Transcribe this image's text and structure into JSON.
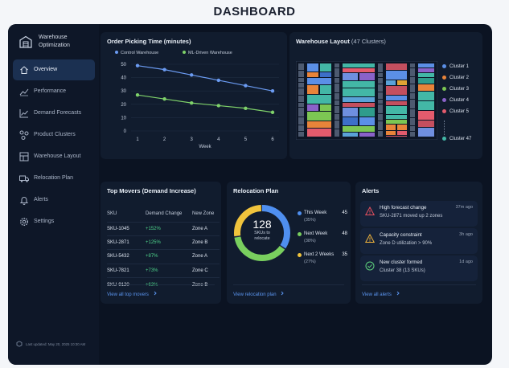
{
  "page": {
    "title": "DASHBOARD"
  },
  "brand": {
    "line1": "Warehouse",
    "line2": "Optimization"
  },
  "sidebar": {
    "items": [
      {
        "label": "Overview",
        "icon": "home-icon",
        "active": true
      },
      {
        "label": "Performance",
        "icon": "trend-icon"
      },
      {
        "label": "Demand Forecasts",
        "icon": "chart-icon"
      },
      {
        "label": "Product Clusters",
        "icon": "cluster-icon"
      },
      {
        "label": "Warehouse Layout",
        "icon": "layout-icon"
      },
      {
        "label": "Relocation Plan",
        "icon": "truck-icon"
      },
      {
        "label": "Alerts",
        "icon": "bell-icon"
      },
      {
        "label": "Settings",
        "icon": "gear-icon"
      }
    ],
    "updated": "Last updated: May 20, 2025 10:30 AM"
  },
  "picking": {
    "title": "Order Picking Time (minutes)",
    "chart_data": {
      "type": "line",
      "x": [
        1,
        2,
        3,
        4,
        5,
        6
      ],
      "xlabel": "Week",
      "ylabel": "",
      "ylim": [
        0,
        50
      ],
      "yticks": [
        0,
        10,
        20,
        30,
        40,
        50
      ],
      "grid": true,
      "legend": "top-left",
      "series": [
        {
          "name": "Control Warehouse",
          "color": "#6b9bf2",
          "values": [
            49,
            46,
            42,
            38,
            34,
            30
          ]
        },
        {
          "name": "ML-Driven Warehouse",
          "color": "#7fd26a",
          "values": [
            27,
            24,
            21,
            19,
            17,
            14
          ]
        }
      ]
    }
  },
  "layout": {
    "title": "Warehouse Layout",
    "subtitle": "(47 Clusters)",
    "clusters": [
      {
        "label": "Cluster 1",
        "color": "#5b8fe6"
      },
      {
        "label": "Cluster 2",
        "color": "#e8843a"
      },
      {
        "label": "Cluster 3",
        "color": "#7cc653"
      },
      {
        "label": "Cluster 4",
        "color": "#8a62c9"
      },
      {
        "label": "Cluster 5",
        "color": "#e35b6d"
      },
      {
        "label": "Cluster 47",
        "color": "#43b7a6"
      }
    ]
  },
  "movers": {
    "title": "Top Movers (Demand Increase)",
    "headers": [
      "SKU",
      "Demand Change",
      "New Zone"
    ],
    "rows": [
      [
        "SKU-1045",
        "+152%",
        "Zone A"
      ],
      [
        "SKU-2871",
        "+125%",
        "Zone B"
      ],
      [
        "SKU-5432",
        "+87%",
        "Zone A"
      ],
      [
        "SKU-7821",
        "+73%",
        "Zone C"
      ],
      [
        "SKU-9120",
        "+63%",
        "Zone B"
      ]
    ],
    "link": "View all top movers"
  },
  "relocation": {
    "title": "Relocation Plan",
    "total": "128",
    "total_label_1": "SKUs to",
    "total_label_2": "relocate",
    "items": [
      {
        "label": "This Week",
        "count": "45",
        "pct": "(35%)",
        "color": "#4f8ff0",
        "fraction": 0.35
      },
      {
        "label": "Next Week",
        "count": "48",
        "pct": "(38%)",
        "color": "#79cf5e",
        "fraction": 0.38
      },
      {
        "label": "Next 2 Weeks",
        "count": "35",
        "pct": "(27%)",
        "color": "#f0c33c",
        "fraction": 0.27
      }
    ],
    "link": "View relocation plan"
  },
  "alerts": {
    "title": "Alerts",
    "items": [
      {
        "title": "High forecast change",
        "desc": "SKU-2871 moved up 2 zones",
        "time": "37m ago",
        "color": "#e5505e",
        "icon": "warning-icon"
      },
      {
        "title": "Capacity constraint",
        "desc": "Zone D utilization > 90%",
        "time": "3h ago",
        "color": "#f0b43c",
        "icon": "caution-icon"
      },
      {
        "title": "New cluster formed",
        "desc": "Cluster 38 (13 SKUs)",
        "time": "1d ago",
        "color": "#5ed17c",
        "icon": "check-circle-icon"
      }
    ],
    "link": "View all alerts"
  }
}
